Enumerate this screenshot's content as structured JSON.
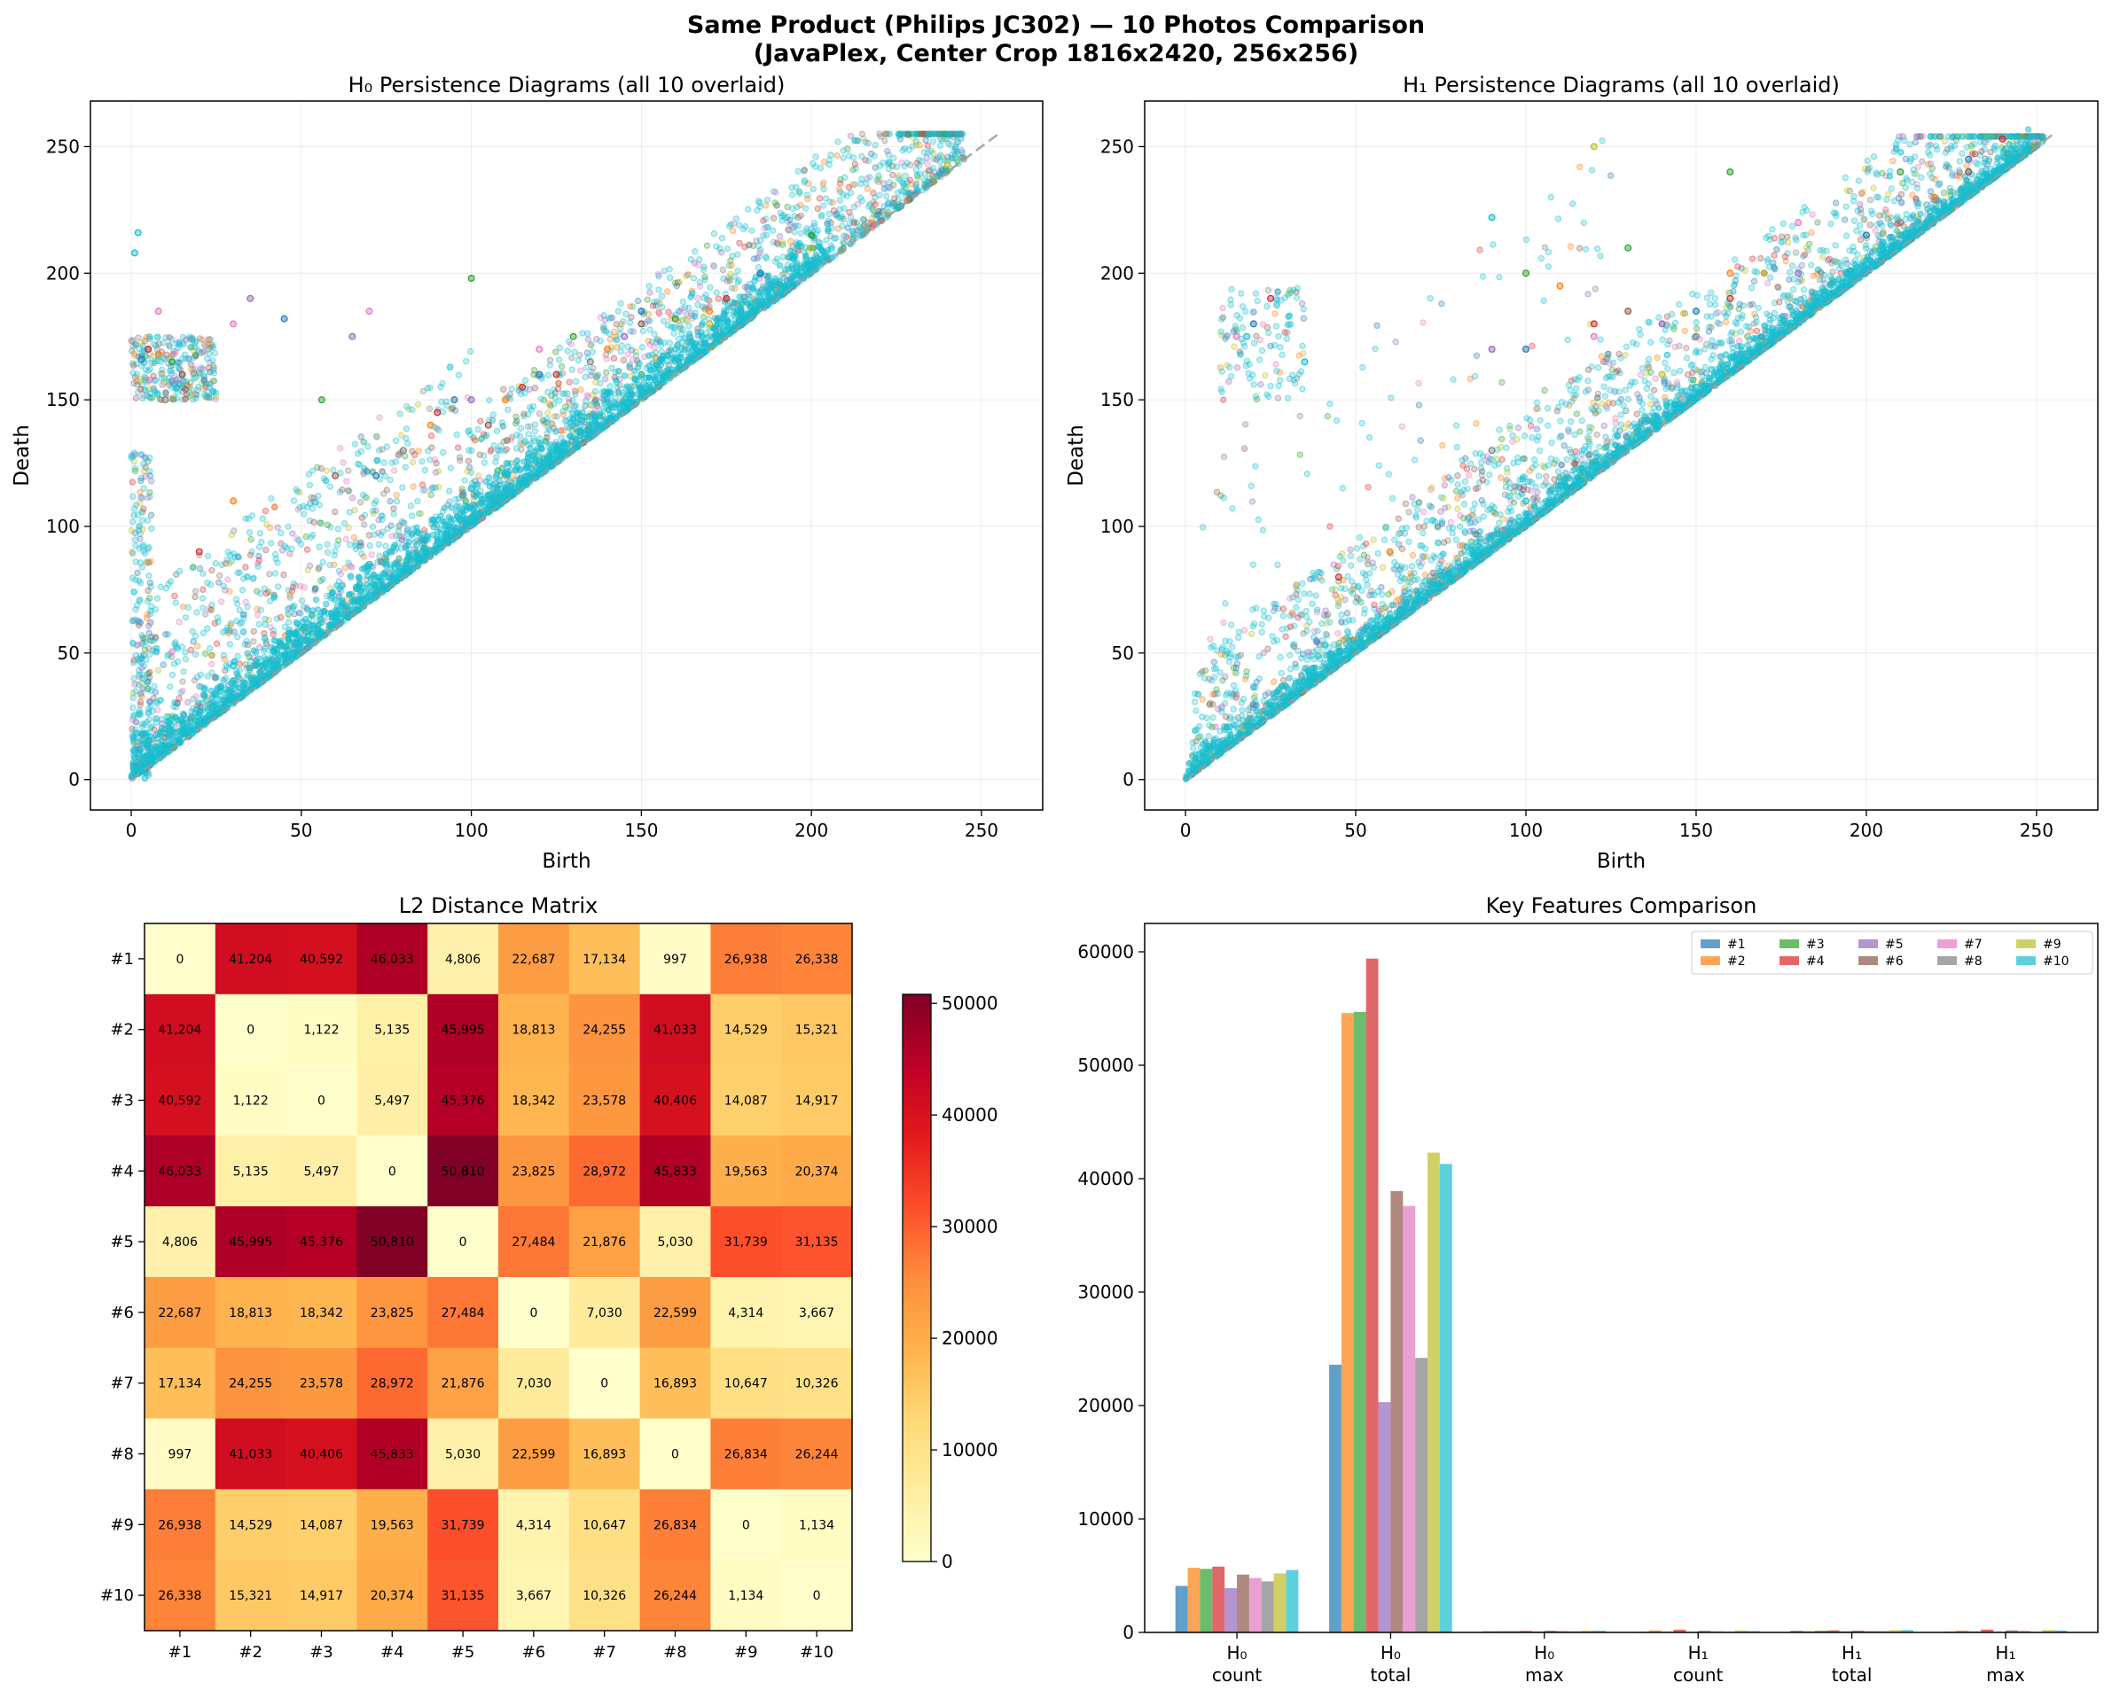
{
  "figure": {
    "title_line1": "Same Product (Philips JC302) — 10 Photos Comparison",
    "title_line2": "(JavaPlex, Center Crop 1816x2420, 256x256)"
  },
  "palette": [
    "#1f77b4",
    "#ff7f0e",
    "#2ca02c",
    "#d62728",
    "#9467bd",
    "#8c564b",
    "#e377c2",
    "#7f7f7f",
    "#bcbd22",
    "#17becf"
  ],
  "chart_data": [
    {
      "type": "scatter",
      "title": "H₀ Persistence Diagrams (all 10 overlaid)",
      "xlabel": "Birth",
      "ylabel": "Death",
      "xlim": [
        -12,
        268
      ],
      "ylim": [
        -12,
        268
      ],
      "xticks": [
        0,
        50,
        100,
        150,
        200,
        250
      ],
      "yticks": [
        0,
        50,
        100,
        150,
        200,
        250
      ],
      "grid": true,
      "diagonal": [
        [
          0,
          0
        ],
        [
          255,
          255
        ]
      ],
      "series_labels": [
        "#1",
        "#2",
        "#3",
        "#4",
        "#5",
        "#6",
        "#7",
        "#8",
        "#9",
        "#10"
      ],
      "sample_points": {
        "#1": [
          [
            3,
            166
          ],
          [
            45,
            182
          ],
          [
            72,
            120
          ],
          [
            95,
            150
          ],
          [
            120,
            160
          ],
          [
            150,
            185
          ],
          [
            185,
            200
          ]
        ],
        "#2": [
          [
            8,
            168
          ],
          [
            30,
            110
          ],
          [
            88,
            140
          ],
          [
            110,
            150
          ],
          [
            140,
            170
          ],
          [
            170,
            185
          ]
        ],
        "#3": [
          [
            12,
            165
          ],
          [
            56,
            150
          ],
          [
            100,
            198
          ],
          [
            130,
            175
          ],
          [
            160,
            182
          ],
          [
            200,
            215
          ]
        ],
        "#4": [
          [
            5,
            170
          ],
          [
            20,
            90
          ],
          [
            90,
            145
          ],
          [
            115,
            155
          ],
          [
            125,
            160
          ],
          [
            175,
            190
          ]
        ],
        "#5": [
          [
            35,
            190
          ],
          [
            65,
            175
          ],
          [
            100,
            150
          ],
          [
            145,
            175
          ]
        ],
        "#6": [
          [
            15,
            160
          ],
          [
            60,
            120
          ],
          [
            105,
            140
          ],
          [
            150,
            180
          ]
        ],
        "#7": [
          [
            8,
            185
          ],
          [
            30,
            180
          ],
          [
            70,
            185
          ],
          [
            120,
            170
          ]
        ],
        "#8": [
          [
            10,
            150
          ],
          [
            80,
            130
          ],
          [
            135,
            165
          ]
        ],
        "#9": [
          [
            150,
            160
          ],
          [
            170,
            180
          ],
          [
            200,
            210
          ],
          [
            240,
            243
          ]
        ],
        "#10": [
          [
            1,
            208
          ],
          [
            2,
            216
          ],
          [
            5,
            15
          ],
          [
            30,
            45
          ],
          [
            70,
            85
          ],
          [
            100,
            115
          ],
          [
            150,
            160
          ],
          [
            200,
            205
          ]
        ]
      }
    },
    {
      "type": "scatter",
      "title": "H₁ Persistence Diagrams (all 10 overlaid)",
      "xlabel": "Birth",
      "ylabel": "Death",
      "xlim": [
        -12,
        268
      ],
      "ylim": [
        -12,
        268
      ],
      "xticks": [
        0,
        50,
        100,
        150,
        200,
        250
      ],
      "yticks": [
        0,
        50,
        100,
        150,
        200,
        250
      ],
      "grid": true,
      "diagonal": [
        [
          0,
          0
        ],
        [
          255,
          255
        ]
      ],
      "series_labels": [
        "#1",
        "#2",
        "#3",
        "#4",
        "#5",
        "#6",
        "#7",
        "#8",
        "#9",
        "#10"
      ],
      "sample_points": {
        "#1": [
          [
            20,
            180
          ],
          [
            100,
            170
          ],
          [
            150,
            185
          ],
          [
            200,
            215
          ],
          [
            230,
            245
          ]
        ],
        "#2": [
          [
            60,
            90
          ],
          [
            110,
            195
          ],
          [
            160,
            200
          ],
          [
            220,
            230
          ]
        ],
        "#3": [
          [
            100,
            200
          ],
          [
            130,
            210
          ],
          [
            160,
            240
          ],
          [
            210,
            240
          ]
        ],
        "#4": [
          [
            25,
            190
          ],
          [
            45,
            80
          ],
          [
            120,
            180
          ],
          [
            160,
            190
          ],
          [
            240,
            253
          ]
        ],
        "#5": [
          [
            90,
            170
          ],
          [
            140,
            180
          ],
          [
            180,
            200
          ]
        ],
        "#6": [
          [
            130,
            185
          ],
          [
            170,
            200
          ],
          [
            230,
            240
          ]
        ],
        "#7": [
          [
            15,
            175
          ],
          [
            120,
            175
          ],
          [
            180,
            220
          ]
        ],
        "#8": [
          [
            90,
            130
          ],
          [
            150,
            175
          ],
          [
            210,
            220
          ]
        ],
        "#9": [
          [
            140,
            160
          ],
          [
            170,
            200
          ],
          [
            120,
            250
          ]
        ],
        "#10": [
          [
            18,
            175
          ],
          [
            35,
            165
          ],
          [
            90,
            222
          ],
          [
            100,
            110
          ],
          [
            150,
            155
          ],
          [
            220,
            225
          ]
        ]
      }
    },
    {
      "type": "heatmap",
      "title": "L2 Distance Matrix",
      "row_labels": [
        "#1",
        "#2",
        "#3",
        "#4",
        "#5",
        "#6",
        "#7",
        "#8",
        "#9",
        "#10"
      ],
      "col_labels": [
        "#1",
        "#2",
        "#3",
        "#4",
        "#5",
        "#6",
        "#7",
        "#8",
        "#9",
        "#10"
      ],
      "colormap": "YlOrRd",
      "vmin": 0,
      "vmax": 50810,
      "colorbar_ticks": [
        0,
        10000,
        20000,
        30000,
        40000,
        50000
      ],
      "values": [
        [
          0,
          41204,
          40592,
          46033,
          4806,
          22687,
          17134,
          997,
          26938,
          26338
        ],
        [
          41204,
          0,
          1122,
          5135,
          45995,
          18813,
          24255,
          41033,
          14529,
          15321
        ],
        [
          40592,
          1122,
          0,
          5497,
          45376,
          18342,
          23578,
          40406,
          14087,
          14917
        ],
        [
          46033,
          5135,
          5497,
          0,
          50810,
          23825,
          28972,
          45833,
          19563,
          20374
        ],
        [
          4806,
          45995,
          45376,
          50810,
          0,
          27484,
          21876,
          5030,
          31739,
          31135
        ],
        [
          22687,
          18813,
          18342,
          23825,
          27484,
          0,
          7030,
          22599,
          4314,
          3667
        ],
        [
          17134,
          24255,
          23578,
          28972,
          21876,
          7030,
          0,
          16893,
          10647,
          10326
        ],
        [
          997,
          41033,
          40406,
          45833,
          5030,
          22599,
          16893,
          0,
          26834,
          26244
        ],
        [
          26938,
          14529,
          14087,
          19563,
          31739,
          4314,
          10647,
          26834,
          0,
          1134
        ],
        [
          26338,
          15321,
          14917,
          20374,
          31135,
          3667,
          10326,
          26244,
          1134,
          0
        ]
      ],
      "cell_labels": [
        [
          "0",
          "41,204",
          "40,592",
          "46,033",
          "4,806",
          "22,687",
          "17,134",
          "997",
          "26,938",
          "26,338"
        ],
        [
          "41,204",
          "0",
          "1,122",
          "5,135",
          "45,995",
          "18,813",
          "24,255",
          "41,033",
          "14,529",
          "15,321"
        ],
        [
          "40,592",
          "1,122",
          "0",
          "5,497",
          "45,376",
          "18,342",
          "23,578",
          "40,406",
          "14,087",
          "14,917"
        ],
        [
          "46,033",
          "5,135",
          "5,497",
          "0",
          "50,810",
          "23,825",
          "28,972",
          "45,833",
          "19,563",
          "20,374"
        ],
        [
          "4,806",
          "45,995",
          "45,376",
          "50,810",
          "0",
          "27,484",
          "21,876",
          "5,030",
          "31,739",
          "31,135"
        ],
        [
          "22,687",
          "18,813",
          "18,342",
          "23,825",
          "27,484",
          "0",
          "7,030",
          "22,599",
          "4,314",
          "3,667"
        ],
        [
          "17,134",
          "24,255",
          "23,578",
          "28,972",
          "21,876",
          "7,030",
          "0",
          "16,893",
          "10,647",
          "10,326"
        ],
        [
          "997",
          "41,033",
          "40,406",
          "45,833",
          "5,030",
          "22,599",
          "16,893",
          "0",
          "26,834",
          "26,244"
        ],
        [
          "26,938",
          "14,529",
          "14,087",
          "19,563",
          "31,739",
          "4,314",
          "10,647",
          "26,834",
          "0",
          "1,134"
        ],
        [
          "26,338",
          "15,321",
          "14,917",
          "20,374",
          "31,135",
          "3,667",
          "10,326",
          "26,244",
          "1,134",
          "0"
        ]
      ]
    },
    {
      "type": "bar",
      "title": "Key Features Comparison",
      "categories": [
        "H₀\ncount",
        "H₀\ntotal",
        "H₀\nmax",
        "H₁\ncount",
        "H₁\ntotal",
        "H₁\nmax"
      ],
      "ylim": [
        0,
        62500
      ],
      "yticks": [
        0,
        10000,
        20000,
        30000,
        40000,
        50000,
        60000
      ],
      "legend_position": "top-right",
      "series": [
        {
          "name": "#1",
          "values": [
            4100,
            23600,
            100,
            60,
            140,
            80
          ]
        },
        {
          "name": "#2",
          "values": [
            5700,
            54600,
            120,
            180,
            120,
            160
          ]
        },
        {
          "name": "#3",
          "values": [
            5600,
            54700,
            110,
            70,
            150,
            90
          ]
        },
        {
          "name": "#4",
          "values": [
            5800,
            59400,
            130,
            240,
            180,
            250
          ]
        },
        {
          "name": "#5",
          "values": [
            3900,
            20300,
            90,
            50,
            100,
            70
          ]
        },
        {
          "name": "#6",
          "values": [
            5100,
            38900,
            150,
            140,
            160,
            180
          ]
        },
        {
          "name": "#7",
          "values": [
            4800,
            37600,
            140,
            110,
            130,
            150
          ]
        },
        {
          "name": "#8",
          "values": [
            4500,
            24200,
            100,
            60,
            110,
            60
          ]
        },
        {
          "name": "#9",
          "values": [
            5200,
            42300,
            160,
            170,
            200,
            220
          ]
        },
        {
          "name": "#10",
          "values": [
            5500,
            41300,
            150,
            120,
            210,
            170
          ]
        }
      ]
    }
  ]
}
